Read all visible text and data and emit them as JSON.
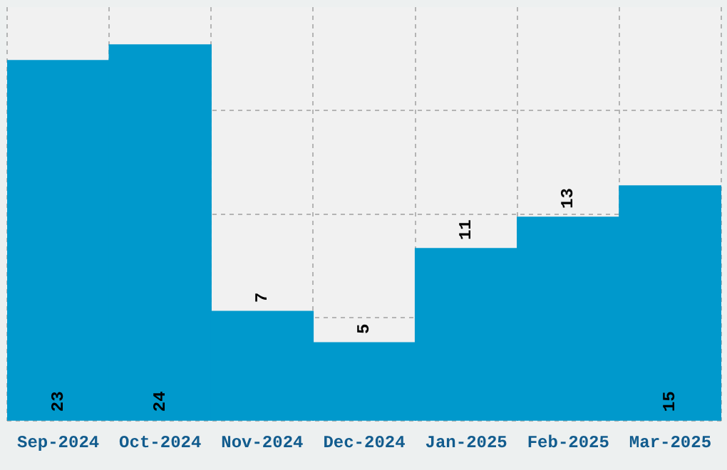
{
  "chart_data": {
    "type": "bar",
    "categories": [
      "Sep-2024",
      "Oct-2024",
      "Nov-2024",
      "Dec-2024",
      "Jan-2025",
      "Feb-2025",
      "Mar-2025"
    ],
    "values": [
      23,
      24,
      7,
      5,
      11,
      13,
      15
    ],
    "color": "#0099cc",
    "ylim": [
      0,
      26.4
    ],
    "yticks": [
      {
        "value": 0,
        "label": null
      },
      {
        "value": 6.6,
        "label": null
      },
      {
        "value": 13.2,
        "label": null
      },
      {
        "value": 19.8,
        "label": null
      }
    ],
    "tick_labels": "x",
    "grid": true,
    "data_labels": true
  }
}
